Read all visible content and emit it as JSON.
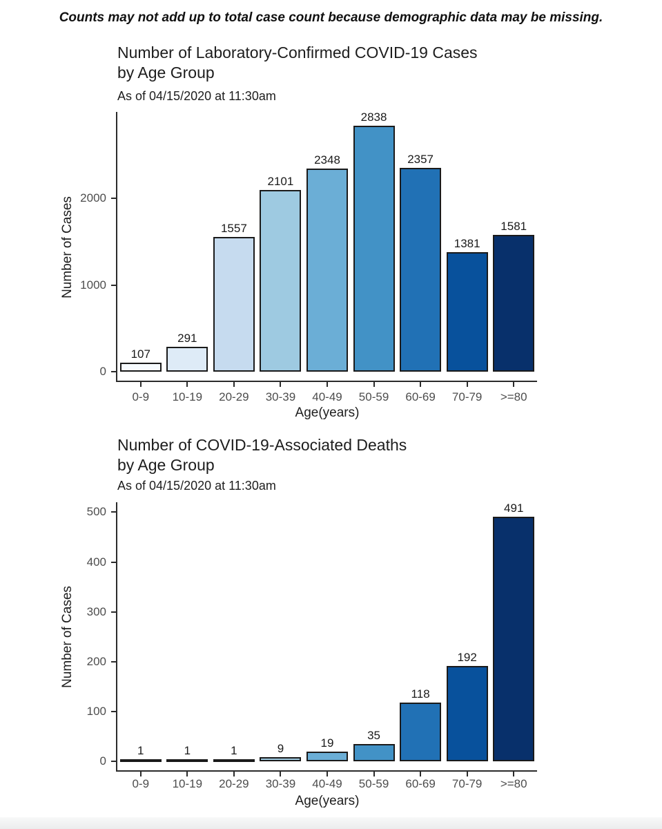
{
  "note": "Counts may not add up to total case count because demographic data may be missing.",
  "colors": {
    "bar_palette": [
      "#F7FBFF",
      "#DEEBF7",
      "#C6DBEF",
      "#9ECAE1",
      "#6BAED6",
      "#4292C6",
      "#2171B5",
      "#08519C",
      "#08306B"
    ],
    "bar_border": "#1a1a1a",
    "axis_line": "#2b2b2b",
    "tick_label": "#4d4d4d",
    "text": "#1a1a1a"
  },
  "chart_data": [
    {
      "type": "bar",
      "title_lines": [
        "Number of Laboratory-Confirmed COVID-19 Cases",
        "by Age Group"
      ],
      "title": "Number of Laboratory-Confirmed COVID-19 Cases by Age Group",
      "subtitle": "As of 04/15/2020 at 11:30am",
      "xlabel": "Age(years)",
      "ylabel": "Number of Cases",
      "categories": [
        "0-9",
        "10-19",
        "20-29",
        "30-39",
        "40-49",
        "50-59",
        "60-69",
        "70-79",
        ">=80"
      ],
      "values": [
        107,
        291,
        1557,
        2101,
        2348,
        2838,
        2357,
        1381,
        1581
      ],
      "yticks": [
        0,
        1000,
        2000
      ],
      "ylim": [
        0,
        3000
      ],
      "grid": false,
      "legend": "none"
    },
    {
      "type": "bar",
      "title_lines": [
        "Number of COVID-19-Associated Deaths",
        "by Age Group"
      ],
      "title": "Number of COVID-19-Associated Deaths by Age Group",
      "subtitle": "As of 04/15/2020 at 11:30am",
      "xlabel": "Age(years)",
      "ylabel": "Number of Cases",
      "categories": [
        "0-9",
        "10-19",
        "20-29",
        "30-39",
        "40-49",
        "50-59",
        "60-69",
        "70-79",
        ">=80"
      ],
      "values": [
        1,
        1,
        1,
        9,
        19,
        35,
        118,
        192,
        491
      ],
      "yticks": [
        0,
        100,
        200,
        300,
        400,
        500
      ],
      "ylim": [
        0,
        520
      ],
      "grid": false,
      "legend": "none"
    }
  ]
}
